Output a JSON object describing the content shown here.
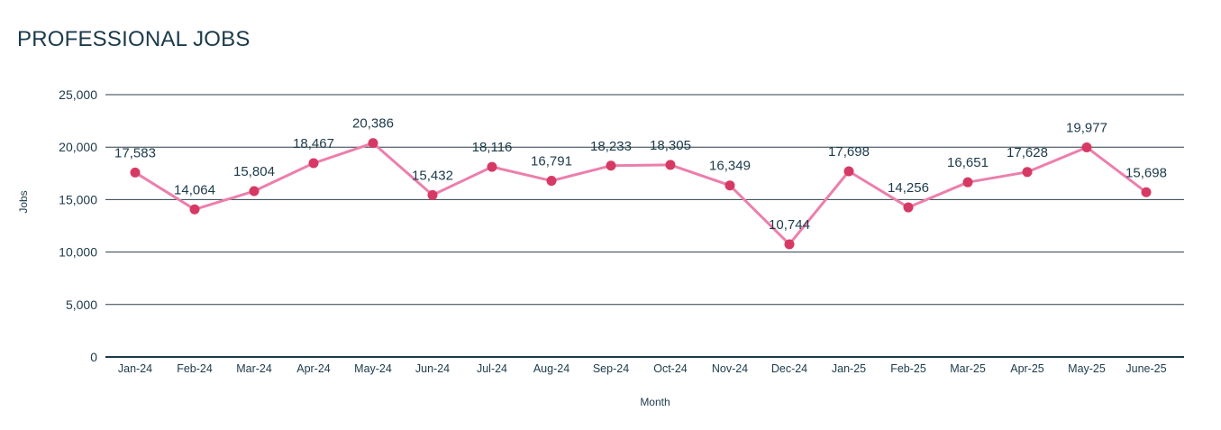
{
  "chart_data": {
    "type": "line",
    "title": "PROFESSIONAL JOBS",
    "xlabel": "Month",
    "ylabel": "Jobs",
    "ylim": [
      0,
      25000
    ],
    "yticks": [
      0,
      5000,
      10000,
      15000,
      20000,
      25000
    ],
    "ytick_labels": [
      "0",
      "5,000",
      "10,000",
      "15,000",
      "20,000",
      "25,000"
    ],
    "grid": "horizontal",
    "categories": [
      "Jan-24",
      "Feb-24",
      "Mar-24",
      "Apr-24",
      "May-24",
      "Jun-24",
      "Jul-24",
      "Aug-24",
      "Sep-24",
      "Oct-24",
      "Nov-24",
      "Dec-24",
      "Jan-25",
      "Feb-25",
      "Mar-25",
      "Apr-25",
      "May-25",
      "June-25"
    ],
    "series": [
      {
        "values": [
          17583,
          14064,
          15804,
          18467,
          20386,
          15432,
          18116,
          16791,
          18233,
          18305,
          16349,
          10744,
          17698,
          14256,
          16651,
          17628,
          19977,
          15698
        ],
        "labels": [
          "17,583",
          "14,064",
          "15,804",
          "18,467",
          "20,386",
          "15,432",
          "18,116",
          "16,791",
          "18,233",
          "18,305",
          "16,349",
          "10,744",
          "17,698",
          "14,256",
          "16,651",
          "17,628",
          "19,977",
          "15,698"
        ],
        "line_color": "#ec7fac",
        "marker_color": "#d63a64"
      }
    ]
  }
}
